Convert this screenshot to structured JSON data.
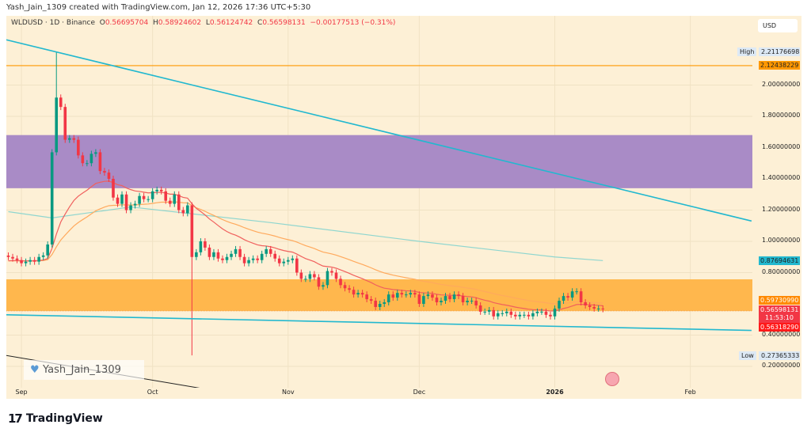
{
  "attribution": "Yash_Jain_1309 created with TradingView.com, Jan 12, 2026 17:36 UTC+5:30",
  "legend": {
    "symbol": "WLDUSD · 1D · Binance",
    "o_label": "O",
    "o": "0.56695704",
    "h_label": "H",
    "h": "0.58924602",
    "l_label": "L",
    "l": "0.56124742",
    "c_label": "C",
    "c": "0.56598131",
    "change": "−0.00177513 (−0.31%)"
  },
  "currency_button": "USD",
  "price_axis": {
    "ticks": [
      "2.00000000",
      "1.80000000",
      "1.60000000",
      "1.40000000",
      "1.20000000",
      "1.00000000",
      "0.80000000",
      "0.40000000",
      "0.20000000"
    ],
    "tick_values": [
      2.0,
      1.8,
      1.6,
      1.4,
      1.2,
      1.0,
      0.8,
      0.4,
      0.2
    ],
    "high_label": "High",
    "high_value": "2.21176698",
    "low_label": "Low",
    "low_value": "0.27365333",
    "badges": {
      "hline": "2.12438229",
      "ma_long": "0.87694631",
      "ma_mid": "0.59730990",
      "last_price": "0.56598131",
      "countdown": "11:53:10",
      "ma_short": "0.56318290"
    }
  },
  "time_axis": {
    "labels": [
      "Sep",
      "Oct",
      "Nov",
      "Dec",
      "2026",
      "Feb"
    ],
    "label_days": [
      3,
      33,
      64,
      94,
      125,
      156
    ]
  },
  "watermark": "Yash_Jain_1309",
  "logo_text": "TradingView",
  "colors": {
    "up": "#089981",
    "down": "#f23645",
    "trend": "#22b8cf",
    "hline": "#ff9800",
    "purple_zone": "#a98bc6",
    "orange_zone": "#ffb74d",
    "ema_short": "#f0605d",
    "ema_mid": "#ffa95c",
    "ma_long": "#8fd6cf"
  },
  "chart_data": {
    "type": "candlestick",
    "start_date": "2025-08-29",
    "closes": [
      0.9,
      0.89,
      0.88,
      0.86,
      0.87,
      0.88,
      0.87,
      0.9,
      0.91,
      0.98,
      1.57,
      1.92,
      1.86,
      1.65,
      1.66,
      1.65,
      1.55,
      1.5,
      1.5,
      1.56,
      1.57,
      1.45,
      1.44,
      1.4,
      1.28,
      1.24,
      1.3,
      1.2,
      1.23,
      1.24,
      1.29,
      1.27,
      1.27,
      1.32,
      1.33,
      1.32,
      1.26,
      1.24,
      1.3,
      1.2,
      1.18,
      1.23,
      0.9,
      0.93,
      1.0,
      0.96,
      0.9,
      0.93,
      0.89,
      0.88,
      0.9,
      0.92,
      0.95,
      0.9,
      0.86,
      0.88,
      0.89,
      0.88,
      0.92,
      0.95,
      0.92,
      0.89,
      0.86,
      0.87,
      0.88,
      0.89,
      0.8,
      0.76,
      0.76,
      0.79,
      0.77,
      0.71,
      0.72,
      0.81,
      0.8,
      0.76,
      0.72,
      0.7,
      0.69,
      0.66,
      0.67,
      0.66,
      0.63,
      0.62,
      0.58,
      0.6,
      0.61,
      0.66,
      0.64,
      0.67,
      0.66,
      0.66,
      0.67,
      0.66,
      0.6,
      0.65,
      0.66,
      0.64,
      0.61,
      0.62,
      0.65,
      0.63,
      0.66,
      0.65,
      0.61,
      0.62,
      0.62,
      0.59,
      0.55,
      0.55,
      0.56,
      0.52,
      0.54,
      0.54,
      0.55,
      0.53,
      0.52,
      0.53,
      0.53,
      0.52,
      0.54,
      0.55,
      0.55,
      0.53,
      0.52,
      0.57,
      0.62,
      0.65,
      0.64,
      0.68,
      0.68,
      0.61,
      0.59,
      0.58,
      0.57,
      0.57,
      0.566
    ],
    "wick_extremes": [
      {
        "day": 11,
        "high": 2.21
      },
      {
        "day": 42,
        "low": 0.27
      }
    ],
    "ma_long": [
      [
        0,
        1.19
      ],
      [
        10,
        1.15
      ],
      [
        28,
        1.22
      ],
      [
        60,
        1.12
      ],
      [
        94,
        1.0
      ],
      [
        125,
        0.9
      ],
      [
        136,
        0.877
      ]
    ],
    "zones": [
      {
        "from": 1.34,
        "to": 1.68,
        "color": "purple"
      },
      {
        "from": 0.555,
        "to": 0.757,
        "color": "orange"
      }
    ],
    "horizontal_line": 2.12438229,
    "trendlines": [
      {
        "from": [
          -0.5,
          2.29
        ],
        "to": [
          170,
          1.13
        ]
      },
      {
        "from": [
          -0.5,
          0.53
        ],
        "to": [
          170,
          0.43
        ]
      },
      {
        "from": [
          -0.5,
          0.27
        ],
        "to": [
          63,
          -0.03
        ]
      }
    ]
  }
}
